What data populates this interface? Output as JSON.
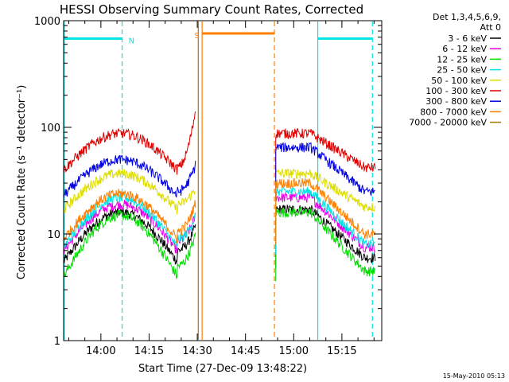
{
  "chart_data": {
    "type": "line",
    "title": "HESSI Observing Summary Count Rates, Corrected",
    "xlabel": "Start Time (27-Dec-09 13:48:22)",
    "ylabel": "Corrected Count Rate (s⁻¹ detector⁻¹)",
    "x_unit": "minutes of day",
    "xlim": [
      828.4,
      927.4
    ],
    "ylim": [
      1,
      1000
    ],
    "y_scale": "log",
    "x_ticks": [
      {
        "value": 840,
        "label": "14:00"
      },
      {
        "value": 855,
        "label": "14:15"
      },
      {
        "value": 870,
        "label": "14:30"
      },
      {
        "value": 885,
        "label": "14:45"
      },
      {
        "value": 900,
        "label": "15:00"
      },
      {
        "value": 915,
        "label": "15:15"
      }
    ],
    "y_ticks": [
      {
        "value": 1,
        "label": "1"
      },
      {
        "value": 10,
        "label": "10"
      },
      {
        "value": 100,
        "label": "100"
      },
      {
        "value": 1000,
        "label": "1000"
      }
    ],
    "legend_header": [
      "Det 1,3,4,5,6,9,",
      "Att 0"
    ],
    "legend_position": "right",
    "footer_timestamp": "15-May-2010 05:13",
    "series": [
      {
        "name": "3 - 6 keV",
        "color": "#000000",
        "pre": [
          5.5,
          16,
          7.0,
          12
        ],
        "post": [
          17,
          6.0
        ]
      },
      {
        "name": "6 - 12 keV",
        "color": "#e600e6",
        "pre": [
          7.0,
          19,
          8.5,
          15
        ],
        "post": [
          22,
          7.5
        ]
      },
      {
        "name": "12 - 25 keV",
        "color": "#00dd00",
        "pre": [
          4.0,
          15,
          5.0,
          10
        ],
        "post": [
          16,
          4.5
        ]
      },
      {
        "name": "25 - 50 keV",
        "color": "#00e5e5",
        "pre": [
          7.5,
          22,
          9.0,
          15
        ],
        "post": [
          25,
          8.0
        ]
      },
      {
        "name": "50 - 100 keV",
        "color": "#dddd00",
        "pre": [
          17,
          37,
          19,
          27
        ],
        "post": [
          37,
          18
        ]
      },
      {
        "name": "100 - 300 keV",
        "color": "#e00000",
        "pre": [
          40,
          88,
          42,
          150
        ],
        "post": [
          88,
          42
        ]
      },
      {
        "name": "300 - 800 keV",
        "color": "#0000e0",
        "pre": [
          23,
          50,
          25,
          45
        ],
        "post": [
          65,
          25
        ]
      },
      {
        "name": "800 - 7000 keV",
        "color": "#ff7f00",
        "pre": [
          9.0,
          24,
          10.5,
          20
        ],
        "post": [
          30,
          10
        ]
      },
      {
        "name": "7000 - 20000 keV",
        "color": "#a07a00",
        "pre": [],
        "post": []
      }
    ],
    "time_segments": {
      "pre": [
        828.4,
        869.5
      ],
      "post": [
        894.4,
        925.5
      ]
    },
    "intervals": [
      {
        "label": "",
        "color": "#00e5e5",
        "x": [
          828.6,
          846.6
        ],
        "y": 680
      },
      {
        "label": "N",
        "color": "#00e5e5",
        "x": [
          -1,
          -1
        ],
        "y": 680,
        "label_x": 848.6
      },
      {
        "label": "S",
        "color": "#ff7f00",
        "x": [
          871.6,
          894.0
        ],
        "y": 760
      },
      {
        "label": "",
        "color": "#00e5e5",
        "x": [
          907.6,
          924.4
        ],
        "y": 680
      }
    ],
    "vlines": [
      {
        "x": 828.6,
        "color": "#00e5e5",
        "style": "solid"
      },
      {
        "x": 846.6,
        "color": "#00e5e5",
        "style": "dashed"
      },
      {
        "x": 870.3,
        "color": "#a07a00",
        "style": "solid"
      },
      {
        "x": 871.5,
        "color": "#ff7f00",
        "style": "solid"
      },
      {
        "x": 894.0,
        "color": "#ff7f00",
        "style": "dashed"
      },
      {
        "x": 907.5,
        "color": "#00e5e5",
        "style": "solid"
      },
      {
        "x": 924.5,
        "color": "#00e5e5",
        "style": "dashed"
      }
    ]
  }
}
